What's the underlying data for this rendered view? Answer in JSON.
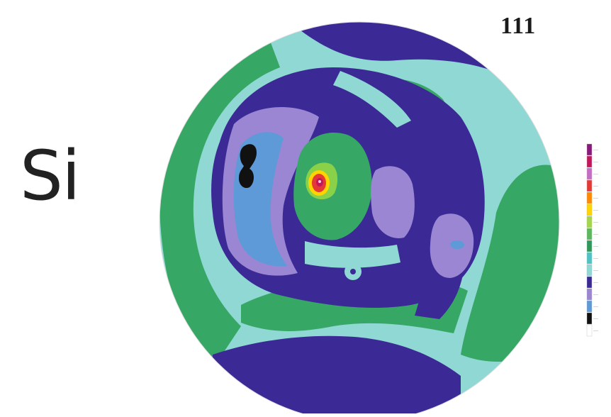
{
  "figure": {
    "element_label": "Si",
    "pole_figure_label": "111",
    "legend_swatch_colors": [
      "#8a1a7a",
      "#c2185b",
      "#c76cc4",
      "#e53935",
      "#ff8a00",
      "#ffd400",
      "#a5d64a",
      "#5cb85c",
      "#2e9a5a",
      "#4fc3c3",
      "#8fd8d4",
      "#3b2a96",
      "#9a86d2",
      "#5e9ad8",
      "#111111",
      "#ffffff"
    ]
  }
}
